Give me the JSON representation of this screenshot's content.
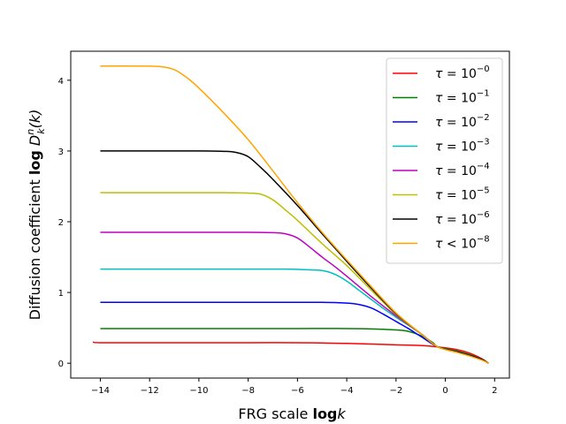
{
  "chart_data": {
    "type": "line",
    "xlabel_text": "FRG scale ",
    "xlabel_bold": "log",
    "xlabel_var": "k",
    "ylabel_text": "Diffusion coefficient  ",
    "ylabel_bold": "log",
    "ylabel_D": "D",
    "ylabel_sub": "k",
    "ylabel_sup": "n",
    "ylabel_arg": "(k)",
    "xlim": [
      -15.2,
      2.6
    ],
    "ylim": [
      -0.21,
      4.41
    ],
    "xticks": [
      -14,
      -12,
      -10,
      -8,
      -6,
      -4,
      -2,
      0,
      2
    ],
    "xtick_labels": [
      "−14",
      "−12",
      "−10",
      "−8",
      "−6",
      "−4",
      "−2",
      "0",
      "2"
    ],
    "yticks": [
      0,
      1,
      2,
      3,
      4
    ],
    "ytick_labels": [
      "0",
      "1",
      "2",
      "3",
      "4"
    ],
    "grid": false,
    "legend_position": "top-right",
    "series": [
      {
        "name": "τ = 10",
        "sup": "−0",
        "color": "#ff0000",
        "plateau": 0.29,
        "knee": -2.5,
        "x": [
          -14.3,
          -14.0,
          -12,
          -10,
          -8,
          -6,
          -4,
          -3,
          -2,
          -1,
          -0.3,
          0.5,
          1.0,
          1.5,
          1.75
        ],
        "y": [
          0.3,
          0.29,
          0.29,
          0.29,
          0.29,
          0.29,
          0.28,
          0.27,
          0.26,
          0.25,
          0.23,
          0.19,
          0.14,
          0.06,
          0.0
        ]
      },
      {
        "name": "τ = 10",
        "sup": "−1",
        "color": "#008000",
        "plateau": 0.49,
        "knee": -1.5,
        "x": [
          -14,
          -12,
          -10,
          -8,
          -6,
          -4,
          -3,
          -2,
          -1.5,
          -1,
          -0.5,
          -0.3,
          0.5,
          1.0,
          1.5,
          1.75
        ],
        "y": [
          0.49,
          0.49,
          0.49,
          0.49,
          0.49,
          0.49,
          0.485,
          0.47,
          0.45,
          0.39,
          0.29,
          0.23,
          0.17,
          0.12,
          0.05,
          0.0
        ]
      },
      {
        "name": "τ = 10",
        "sup": "−2",
        "color": "#0000ff",
        "plateau": 0.86,
        "knee": -3.5,
        "x": [
          -14,
          -12,
          -10,
          -8,
          -6,
          -5,
          -4,
          -3.5,
          -3,
          -2.5,
          -2,
          -1.5,
          -1,
          -0.3,
          0.5,
          1.0,
          1.5,
          1.75
        ],
        "y": [
          0.86,
          0.86,
          0.86,
          0.86,
          0.86,
          0.86,
          0.85,
          0.83,
          0.78,
          0.69,
          0.59,
          0.49,
          0.38,
          0.23,
          0.16,
          0.11,
          0.05,
          0.0
        ]
      },
      {
        "name": "τ = 10",
        "sup": "−3",
        "color": "#00bfbf",
        "plateau": 1.33,
        "knee": -5,
        "x": [
          -14,
          -12,
          -10,
          -8,
          -6.5,
          -5.5,
          -5,
          -4.5,
          -4,
          -3.5,
          -3,
          -2.5,
          -2,
          -1,
          -0.3,
          0.5,
          1.0,
          1.5,
          1.75
        ],
        "y": [
          1.33,
          1.33,
          1.33,
          1.33,
          1.33,
          1.32,
          1.31,
          1.26,
          1.16,
          1.03,
          0.9,
          0.77,
          0.65,
          0.42,
          0.23,
          0.16,
          0.11,
          0.05,
          0.0
        ]
      },
      {
        "name": "τ = 10",
        "sup": "−4",
        "color": "#bf00bf",
        "plateau": 1.85,
        "knee": -6.5,
        "x": [
          -14,
          -12,
          -10,
          -8,
          -7,
          -6.5,
          -6,
          -5.5,
          -5,
          -4.5,
          -4,
          -3,
          -2,
          -1,
          -0.3,
          0.5,
          1.0,
          1.5,
          1.75
        ],
        "y": [
          1.85,
          1.85,
          1.85,
          1.85,
          1.845,
          1.83,
          1.77,
          1.64,
          1.5,
          1.37,
          1.23,
          0.94,
          0.67,
          0.42,
          0.23,
          0.16,
          0.11,
          0.05,
          0.0
        ]
      },
      {
        "name": "τ = 10",
        "sup": "−5",
        "color": "#bfbf00",
        "plateau": 2.41,
        "knee": -7.5,
        "x": [
          -14,
          -12,
          -10,
          -9,
          -8,
          -7.5,
          -7,
          -6.5,
          -6,
          -5,
          -4,
          -3,
          -2,
          -1,
          -0.3,
          0.5,
          1.0,
          1.5,
          1.75
        ],
        "y": [
          2.41,
          2.41,
          2.41,
          2.41,
          2.405,
          2.39,
          2.31,
          2.17,
          2.02,
          1.69,
          1.38,
          1.03,
          0.69,
          0.42,
          0.23,
          0.16,
          0.11,
          0.05,
          0.0
        ]
      },
      {
        "name": "τ = 10",
        "sup": "−6",
        "color": "#000000",
        "plateau": 3.0,
        "knee": -8.5,
        "x": [
          -14,
          -12,
          -10,
          -9,
          -8.5,
          -8,
          -7.5,
          -7,
          -6,
          -5,
          -4,
          -3,
          -2,
          -1,
          -0.3,
          0.5,
          1.0,
          1.5,
          1.75
        ],
        "y": [
          3.0,
          3.0,
          3.0,
          2.995,
          2.98,
          2.92,
          2.77,
          2.6,
          2.23,
          1.83,
          1.44,
          1.06,
          0.7,
          0.42,
          0.23,
          0.16,
          0.11,
          0.05,
          0.0
        ]
      },
      {
        "name": "τ < 10",
        "sup": "−8",
        "color": "#ffa500",
        "plateau": 4.2,
        "knee": -11,
        "x": [
          -14,
          -12,
          -11.5,
          -11,
          -10.5,
          -10,
          -9,
          -8,
          -7,
          -6,
          -5,
          -4,
          -3,
          -2,
          -1,
          -0.3,
          0.5,
          1.0,
          1.5,
          1.75
        ],
        "y": [
          4.2,
          4.2,
          4.19,
          4.15,
          4.04,
          3.89,
          3.54,
          3.16,
          2.72,
          2.27,
          1.85,
          1.46,
          1.08,
          0.71,
          0.42,
          0.23,
          0.15,
          0.1,
          0.04,
          0.0
        ]
      }
    ]
  }
}
